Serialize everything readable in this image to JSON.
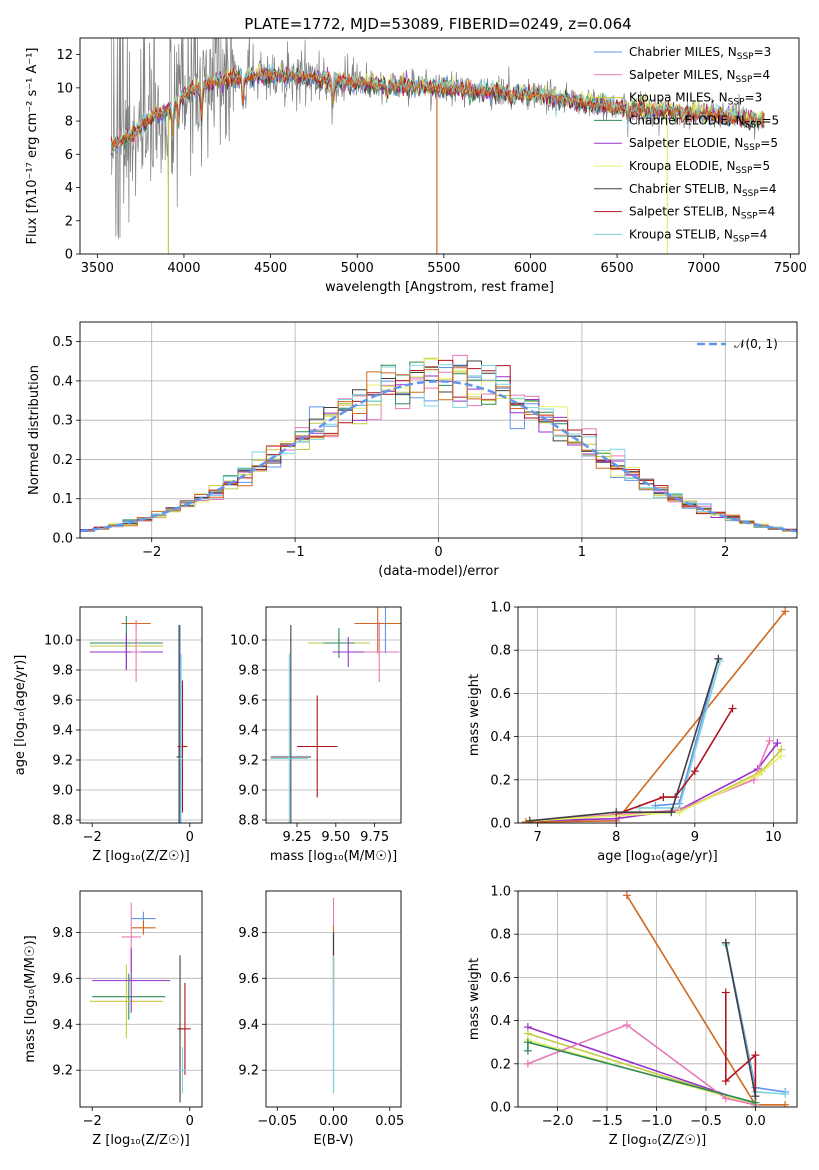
{
  "colors": {
    "Chabrier MILES": "#6495ed",
    "Salpeter MILES": "#e87ab8",
    "Kroupa MILES": "#c3c943",
    "Chabrier ELODIE": "#2e8b57",
    "Salpeter ELODIE": "#9932cc",
    "Kroupa ELODIE": "#e6f06c",
    "Chabrier STELIB": "#404040",
    "Salpeter STELIB": "#b0141e",
    "Kroupa STELIB": "#7fd3de",
    "orange": "#d2691e",
    "normal_curve": "#6495ed"
  },
  "chart_data": [
    {
      "type": "line",
      "title": "PLATE=1772, MJD=53089, FIBERID=0249, z=0.064",
      "xlabel": "wavelength [Angstrom, rest frame]",
      "ylabel": "Flux [fλ10⁻¹⁷ erg cm⁻² s⁻¹ A⁻¹]",
      "xlim": [
        3400,
        7550
      ],
      "ylim": [
        0,
        13
      ],
      "xticks": [
        3500,
        4000,
        4500,
        5000,
        5500,
        6000,
        6500,
        7000,
        7500
      ],
      "yticks": [
        0,
        2,
        4,
        6,
        8,
        10,
        12
      ],
      "legend_position": "top-right",
      "legend": [
        {
          "name": "Chabrier MILES, N",
          "sub": "SSP",
          "sup": "=3",
          "color_key": "Chabrier MILES"
        },
        {
          "name": "Salpeter MILES, N",
          "sub": "SSP",
          "sup": "=4",
          "color_key": "Salpeter MILES"
        },
        {
          "name": "Kroupa MILES, N",
          "sub": "SSP",
          "sup": "=3",
          "color_key": "Kroupa MILES"
        },
        {
          "name": "Chabrier ELODIE, N",
          "sub": "SSP",
          "sup": "=5",
          "color_key": "Chabrier ELODIE"
        },
        {
          "name": "Salpeter ELODIE, N",
          "sub": "SSP",
          "sup": "=5",
          "color_key": "Salpeter ELODIE"
        },
        {
          "name": "Kroupa ELODIE, N",
          "sub": "SSP",
          "sup": "=5",
          "color_key": "Kroupa ELODIE"
        },
        {
          "name": "Chabrier STELIB, N",
          "sub": "SSP",
          "sup": "=4",
          "color_key": "Chabrier STELIB"
        },
        {
          "name": "Salpeter STELIB, N",
          "sub": "SSP",
          "sup": "=4",
          "color_key": "Salpeter STELIB"
        },
        {
          "name": "Kroupa STELIB, N",
          "sub": "SSP",
          "sup": "=4",
          "color_key": "Kroupa STELIB"
        }
      ],
      "continuum": [
        [
          3580,
          6.5
        ],
        [
          3700,
          7.2
        ],
        [
          3800,
          8.2
        ],
        [
          3900,
          8.6
        ],
        [
          4000,
          9.6
        ],
        [
          4100,
          10.2
        ],
        [
          4300,
          10.6
        ],
        [
          4500,
          10.8
        ],
        [
          4800,
          10.5
        ],
        [
          5100,
          10.2
        ],
        [
          5500,
          10.0
        ],
        [
          6000,
          9.6
        ],
        [
          6500,
          8.8
        ],
        [
          7000,
          8.4
        ],
        [
          7350,
          8.0
        ]
      ],
      "emission_spikes": [
        [
          3910,
          0.0,
          "Kroupa MILES"
        ],
        [
          5460,
          0.0,
          "orange"
        ],
        [
          6790,
          0.0,
          "Kroupa ELODIE"
        ]
      ]
    },
    {
      "type": "histogram",
      "xlabel": "(data-model)/error",
      "ylabel": "Normed distribution",
      "xlim": [
        -2.5,
        2.5
      ],
      "ylim": [
        0,
        0.55
      ],
      "xticks": [
        -2,
        -1,
        0,
        1,
        2
      ],
      "yticks": [
        0.0,
        0.1,
        0.2,
        0.3,
        0.4,
        0.5
      ],
      "grid": true,
      "bin_edges_start": -2.5,
      "bin_width": 0.1,
      "reference_curve": {
        "label": "𝒩(0, 1)",
        "mean": 0,
        "sigma": 1
      },
      "legend_position": "top-right"
    },
    {
      "type": "errorbar",
      "xlabel": "Z [log₁₀(Z/Z☉)]",
      "ylabel": "age  [log₁₀(age/yr)]",
      "xlim": [
        -2.25,
        0.25
      ],
      "ylim": [
        8.78,
        10.22
      ],
      "xticks": [
        -2,
        0
      ],
      "yticks": [
        8.8,
        9.0,
        9.2,
        9.4,
        9.6,
        9.8,
        10.0
      ],
      "points": [
        {
          "series": "Chabrier MILES",
          "x": -0.2,
          "y": 9.22,
          "xerr": 0.05,
          "yerr": 0.88
        },
        {
          "series": "orange",
          "x": -1.1,
          "y": 10.11,
          "xerr": 0.3,
          "yerr": 0.02
        },
        {
          "series": "Kroupa MILES",
          "x": -1.3,
          "y": 9.96,
          "xerr": 0.75,
          "yerr": 0.05
        },
        {
          "series": "Chabrier ELODIE",
          "x": -1.3,
          "y": 9.98,
          "xerr": 0.75,
          "yerr": 0.18
        },
        {
          "series": "Salpeter ELODIE",
          "x": -1.3,
          "y": 9.92,
          "xerr": 0.75,
          "yerr": 0.12
        },
        {
          "series": "Chabrier STELIB",
          "x": -0.22,
          "y": 9.22,
          "xerr": 0.05,
          "yerr": 0.88
        },
        {
          "series": "Salpeter STELIB",
          "x": -0.15,
          "y": 9.29,
          "xerr": 0.1,
          "yerr": 0.44
        },
        {
          "series": "Kroupa STELIB",
          "x": -0.18,
          "y": 9.21,
          "xerr": 0.05,
          "yerr": 0.7
        },
        {
          "series": "Salpeter MILES",
          "x": -1.1,
          "y": 9.92,
          "xerr": 0.1,
          "yerr": 0.2
        }
      ]
    },
    {
      "type": "errorbar",
      "xlabel": "mass [log₁₀(M/M☉)]",
      "ylabel": "",
      "xlim": [
        9.05,
        9.92
      ],
      "ylim": [
        8.78,
        10.22
      ],
      "xticks": [
        9.25,
        9.5,
        9.75
      ],
      "xtick_labels": [
        "9.25",
        "9.50",
        "9.75"
      ],
      "yticks": [
        8.8,
        9.0,
        9.2,
        9.4,
        9.6,
        9.8,
        10.0
      ],
      "points": [
        {
          "series": "Chabrier MILES",
          "x": 9.82,
          "y": 10.11,
          "xerr": 0.05,
          "yerr": 0.2
        },
        {
          "series": "orange",
          "x": 9.77,
          "y": 10.11,
          "xerr": 0.15,
          "yerr": 0.2
        },
        {
          "series": "Salpeter MILES",
          "x": 9.78,
          "y": 9.92,
          "xerr": 0.13,
          "yerr": 0.2
        },
        {
          "series": "Kroupa MILES",
          "x": 9.52,
          "y": 9.98,
          "xerr": 0.2,
          "yerr": 0.05
        },
        {
          "series": "Chabrier ELODIE",
          "x": 9.52,
          "y": 9.98,
          "xerr": 0.1,
          "yerr": 0.1
        },
        {
          "series": "Salpeter ELODIE",
          "x": 9.58,
          "y": 9.92,
          "xerr": 0.1,
          "yerr": 0.1
        },
        {
          "series": "Chabrier STELIB",
          "x": 9.21,
          "y": 9.22,
          "xerr": 0.13,
          "yerr": 0.88
        },
        {
          "series": "Salpeter STELIB",
          "x": 9.38,
          "y": 9.29,
          "xerr": 0.13,
          "yerr": 0.34
        },
        {
          "series": "Kroupa STELIB",
          "x": 9.2,
          "y": 9.21,
          "xerr": 0.12,
          "yerr": 0.7
        }
      ]
    },
    {
      "type": "line",
      "xlabel": "age  [log₁₀(age/yr)]",
      "ylabel": "mass weight",
      "xlim": [
        6.75,
        10.3
      ],
      "ylim": [
        0,
        1.0
      ],
      "xticks": [
        7,
        8,
        9,
        10
      ],
      "yticks": [
        0.0,
        0.2,
        0.4,
        0.6,
        0.8,
        1.0
      ],
      "grid": true,
      "series": [
        {
          "name": "orange",
          "points": [
            [
              6.85,
              0.005
            ],
            [
              8.0,
              0.01
            ],
            [
              10.15,
              0.98
            ]
          ]
        },
        {
          "name": "Chabrier MILES",
          "points": [
            [
              8.5,
              0.08
            ],
            [
              8.8,
              0.09
            ],
            [
              9.3,
              0.76
            ]
          ]
        },
        {
          "name": "Kroupa STELIB",
          "points": [
            [
              8.3,
              0.07
            ],
            [
              8.8,
              0.07
            ],
            [
              9.32,
              0.75
            ]
          ]
        },
        {
          "name": "Salpeter STELIB",
          "points": [
            [
              8.0,
              0.04
            ],
            [
              8.6,
              0.12
            ],
            [
              8.75,
              0.12
            ],
            [
              9.0,
              0.24
            ],
            [
              9.48,
              0.53
            ]
          ]
        },
        {
          "name": "Salpeter ELODIE",
          "points": [
            [
              6.9,
              0.01
            ],
            [
              8.0,
              0.02
            ],
            [
              8.8,
              0.06
            ],
            [
              9.8,
              0.25
            ],
            [
              10.05,
              0.37
            ]
          ]
        },
        {
          "name": "Salpeter MILES",
          "points": [
            [
              6.9,
              0.01
            ],
            [
              8.8,
              0.06
            ],
            [
              9.75,
              0.2
            ],
            [
              9.95,
              0.38
            ]
          ]
        },
        {
          "name": "Kroupa MILES",
          "points": [
            [
              6.9,
              0.01
            ],
            [
              8.8,
              0.05
            ],
            [
              9.85,
              0.24
            ],
            [
              10.1,
              0.34
            ]
          ]
        },
        {
          "name": "Kroupa ELODIE",
          "points": [
            [
              6.9,
              0.01
            ],
            [
              8.8,
              0.05
            ],
            [
              9.8,
              0.22
            ],
            [
              10.1,
              0.31
            ]
          ]
        },
        {
          "name": "Chabrier STELIB",
          "points": [
            [
              6.9,
              0.01
            ],
            [
              8.0,
              0.05
            ],
            [
              8.7,
              0.05
            ],
            [
              9.3,
              0.76
            ]
          ]
        }
      ]
    },
    {
      "type": "errorbar",
      "xlabel": "Z [log₁₀(Z/Z☉)]",
      "ylabel": "mass [log₁₀(M/M☉)]",
      "xlim": [
        -2.25,
        0.25
      ],
      "ylim": [
        9.04,
        9.98
      ],
      "xticks": [
        -2,
        0
      ],
      "yticks": [
        9.2,
        9.4,
        9.6,
        9.8
      ],
      "points": [
        {
          "series": "Chabrier MILES",
          "x": -0.95,
          "y": 9.86,
          "xerr": 0.25,
          "yerr": 0.03
        },
        {
          "series": "orange",
          "x": -0.95,
          "y": 9.82,
          "xerr": 0.25,
          "yerr": 0.03
        },
        {
          "series": "Salpeter MILES",
          "x": -1.2,
          "y": 9.78,
          "xerr": 0.2,
          "yerr": 0.15
        },
        {
          "series": "Chabrier ELODIE",
          "x": -1.25,
          "y": 9.52,
          "xerr": 0.75,
          "yerr": 0.1
        },
        {
          "series": "Kroupa MILES",
          "x": -1.3,
          "y": 9.5,
          "xerr": 0.75,
          "yerr": 0.16
        },
        {
          "series": "Salpeter ELODIE",
          "x": -1.2,
          "y": 9.59,
          "xerr": 0.8,
          "yerr": 0.14
        },
        {
          "series": "Chabrier STELIB",
          "x": -0.2,
          "y": 9.38,
          "xerr": 0.05,
          "yerr": 0.32
        },
        {
          "series": "Salpeter STELIB",
          "x": -0.1,
          "y": 9.38,
          "xerr": 0.12,
          "yerr": 0.2
        },
        {
          "series": "Kroupa STELIB",
          "x": -0.15,
          "y": 9.2,
          "xerr": 0.08,
          "yerr": 0.1
        }
      ]
    },
    {
      "type": "errorbar",
      "xlabel": "E(B-V)",
      "ylabel": "",
      "xlim": [
        -0.06,
        0.06
      ],
      "ylim": [
        9.04,
        9.98
      ],
      "xticks": [
        -0.05,
        0.0,
        0.05
      ],
      "xtick_labels": [
        "−0.05",
        "0.00",
        "0.05"
      ],
      "yticks": [
        9.2,
        9.4,
        9.6,
        9.8
      ],
      "points": [
        {
          "series": "Salpeter MILES",
          "x": 0.0,
          "y": 9.7,
          "xerr": 0.0,
          "yerr": 0.25
        },
        {
          "series": "orange",
          "x": 0.0,
          "y": 9.7,
          "xerr": 0.0,
          "yerr": 0.13
        },
        {
          "series": "Salpeter STELIB",
          "x": 0.0,
          "y": 9.6,
          "xerr": 0.0,
          "yerr": 0.2
        },
        {
          "series": "Chabrier STELIB",
          "x": 0.0,
          "y": 9.45,
          "xerr": 0.0,
          "yerr": 0.35
        },
        {
          "series": "Kroupa STELIB",
          "x": 0.0,
          "y": 9.4,
          "xerr": 0.0,
          "yerr": 0.3
        }
      ]
    },
    {
      "type": "line",
      "xlabel": "Z [log₁₀(Z/Z☉)]",
      "ylabel": "mass weight",
      "xlim": [
        -2.4,
        0.42
      ],
      "ylim": [
        0,
        1.0
      ],
      "xticks": [
        -2.0,
        -1.5,
        -1.0,
        -0.5,
        0.0
      ],
      "xtick_labels": [
        "−2.0",
        "−1.5",
        "−1.0",
        "−0.5",
        "0.0"
      ],
      "yticks": [
        0.0,
        0.2,
        0.4,
        0.6,
        0.8,
        1.0
      ],
      "grid": true,
      "series": [
        {
          "name": "orange",
          "points": [
            [
              -1.3,
              0.98
            ],
            [
              0.0,
              0.01
            ],
            [
              0.3,
              0.01
            ]
          ]
        },
        {
          "name": "Chabrier MILES",
          "points": [
            [
              -0.3,
              0.76
            ],
            [
              0.0,
              0.09
            ],
            [
              0.3,
              0.07
            ]
          ]
        },
        {
          "name": "Kroupa STELIB",
          "points": [
            [
              -0.3,
              0.75
            ],
            [
              0.0,
              0.07
            ],
            [
              0.3,
              0.06
            ]
          ]
        },
        {
          "name": "Salpeter STELIB",
          "points": [
            [
              -0.3,
              0.53
            ],
            [
              -0.3,
              0.12
            ],
            [
              0.0,
              0.24
            ],
            [
              0.0,
              0.0
            ]
          ]
        },
        {
          "name": "Salpeter ELODIE",
          "points": [
            [
              -2.3,
              0.37
            ],
            [
              0.0,
              0.01
            ]
          ]
        },
        {
          "name": "Kroupa MILES",
          "points": [
            [
              -2.3,
              0.34
            ],
            [
              0.0,
              0.01
            ]
          ]
        },
        {
          "name": "Kroupa ELODIE",
          "points": [
            [
              -2.3,
              0.31
            ],
            [
              0.0,
              0.01
            ]
          ]
        },
        {
          "name": "Salpeter MILES",
          "points": [
            [
              -2.3,
              0.2
            ],
            [
              -1.3,
              0.38
            ],
            [
              -0.3,
              0.04
            ],
            [
              0.0,
              0.01
            ]
          ]
        },
        {
          "name": "Chabrier STELIB",
          "points": [
            [
              -0.3,
              0.76
            ],
            [
              0.0,
              0.05
            ]
          ]
        },
        {
          "name": "Chabrier ELODIE",
          "points": [
            [
              -2.3,
              0.26
            ],
            [
              -2.3,
              0.3
            ],
            [
              0.0,
              0.02
            ]
          ]
        }
      ]
    }
  ]
}
